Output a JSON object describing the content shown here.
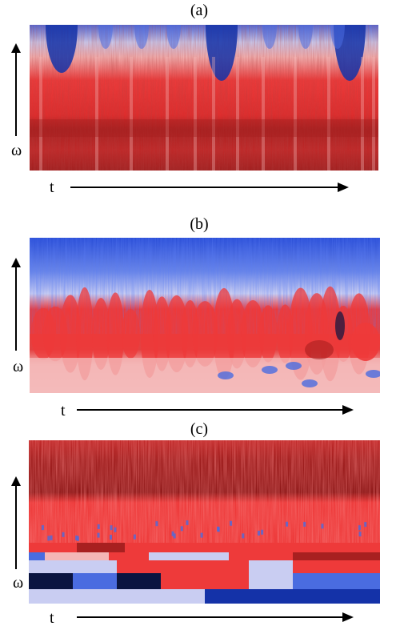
{
  "panels": [
    {
      "label": "(a)",
      "x_axis": "t",
      "y_axis": "ω"
    },
    {
      "label": "(b)",
      "x_axis": "t",
      "y_axis": "ω"
    },
    {
      "label": "(c)",
      "x_axis": "t",
      "y_axis": "ω"
    }
  ],
  "colors": {
    "deep_blue": "#1432a8",
    "blue": "#4a6ce0",
    "light_blue": "#c9cdf2",
    "pink": "#f4b6b6",
    "red": "#ee3a3a",
    "dark_red": "#a82020",
    "navy": "#0a1440"
  }
}
